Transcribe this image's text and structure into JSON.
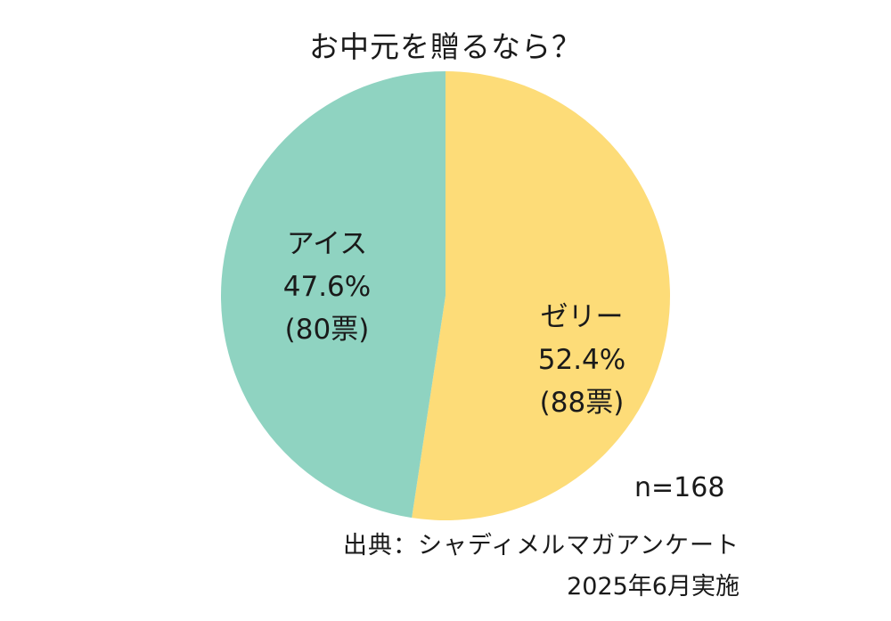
{
  "title": "お中元を贈るなら？",
  "colors": {
    "ice": "#8fd3c1",
    "jelly": "#fddc78"
  },
  "slices": [
    {
      "name": "ゼリー",
      "percent_label": "52.4%",
      "votes_label": "(88票)"
    },
    {
      "name": "アイス",
      "percent_label": "47.6%",
      "votes_label": "(80票)"
    }
  ],
  "sample_size": "n=168",
  "source": "出典：シャディメルマガアンケート",
  "survey_date": "2025年6月実施",
  "chart_data": {
    "type": "pie",
    "title": "お中元を贈るなら？",
    "categories": [
      "ゼリー",
      "アイス"
    ],
    "values": [
      52.4,
      47.6
    ],
    "votes": [
      88,
      80
    ],
    "total": 168,
    "unit": "%",
    "start_angle": "12 o'clock, clockwise",
    "annotations": [
      "n=168",
      "出典：シャディメルマガアンケート",
      "2025年6月実施"
    ]
  }
}
